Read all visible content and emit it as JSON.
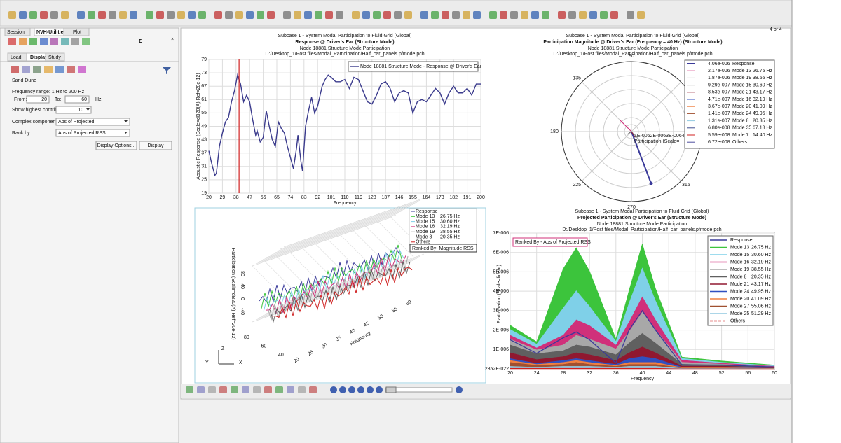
{
  "left_panel": {
    "tabs": [
      "Session",
      "NVH-Utilities",
      "Plot"
    ],
    "subtabs": [
      "Load",
      "Display",
      "Study"
    ],
    "section_title": "Sand Dune",
    "frequency_range": "Frequency range: 1 Hz to 200 Hz",
    "from_label": "From:",
    "from_value": "20",
    "to_label": "To:",
    "to_value": "60",
    "unit": "Hz",
    "highest_label": "Show highest contrib:",
    "highest_value": "10",
    "complex_label": "Complex component:",
    "complex_value": "Abs of Projected",
    "rank_label": "Rank by:",
    "rank_value": "Abs of Projected RSS",
    "options_button": "Display Options...",
    "display_button": "Display"
  },
  "page_counter": "4 of 4",
  "chart_data": [
    {
      "type": "line",
      "title_lines": [
        "Subcase 1 - System Modal Participation to Fluid Grid (Global)",
        "Response @ Driver's Ear (Structure Mode)",
        "Node 18881 Structure Mode Participation",
        "D:/Desktop_1/Post files/Modal_Participation/Half_car_panels.pfmode.pch"
      ],
      "xlabel": "Frequency",
      "ylabel": "Acoustic Response (Scale=dB20(A) Ref=20e-12)",
      "x": [
        20,
        22,
        24,
        25,
        27,
        29,
        31,
        33,
        35,
        37,
        39,
        41,
        43,
        45,
        47,
        49,
        51,
        52,
        54,
        56,
        58,
        60,
        62,
        64,
        66,
        68,
        70,
        72,
        74,
        76,
        78,
        79,
        81,
        82,
        84,
        86,
        88,
        90,
        92,
        95,
        97,
        99,
        101,
        104,
        107,
        110,
        113,
        116,
        119,
        122,
        125,
        128,
        131,
        134,
        137,
        140,
        143,
        146,
        149,
        152,
        155,
        158,
        161,
        164,
        167,
        170,
        173,
        176,
        179,
        182,
        185,
        188,
        191,
        194,
        197,
        200
      ],
      "series": [
        {
          "name": "Node 18881 Structure Mode - Response @ Driver's Ear",
          "color": "#3a3a8c",
          "values": [
            38,
            32,
            27,
            28,
            40,
            46,
            51,
            53,
            60,
            65,
            72,
            68,
            60,
            63,
            60,
            52,
            45,
            47,
            42,
            44,
            56,
            49,
            43,
            40,
            51,
            48,
            46,
            40,
            35,
            30,
            39,
            45,
            33,
            29,
            49,
            56,
            62,
            55,
            58,
            67,
            70,
            72,
            71,
            69,
            69,
            70,
            66,
            71,
            70,
            65,
            60,
            59,
            63,
            68,
            69,
            66,
            60,
            64,
            65,
            64,
            55,
            60,
            61,
            60,
            63,
            66,
            64,
            59,
            64,
            67,
            64,
            64,
            66,
            63,
            68,
            68
          ]
        }
      ],
      "xlim": [
        20,
        200
      ],
      "ylim": [
        19,
        79
      ],
      "xticks": [
        20,
        29,
        38,
        47,
        56,
        65,
        74,
        83,
        92,
        101,
        110,
        119,
        128,
        137,
        146,
        155,
        164,
        173,
        182,
        191,
        200
      ],
      "yticks": [
        19,
        25,
        31,
        37,
        43,
        49,
        55,
        61,
        67,
        73,
        79
      ],
      "grid": true,
      "cursor_x": 40,
      "cursor_color": "#d02020"
    },
    {
      "type": "polar",
      "title_lines": [
        "Subcase 1 - System Modal Participation to Fluid Grid (Global)",
        "Participation Magnitude @ Driver's Ear (Frequency = 40 Hz) (Structure Mode)",
        "Node 18881 Structure Mode Participation",
        "D:/Desktop_1/Post files/Modal_Participation/Half_car_panels.pfmode.pch"
      ],
      "angle_ticks": [
        90,
        135,
        180,
        225,
        270,
        315
      ],
      "radial_label": "1E-0062E-0063E-0064E",
      "axis_label": "Participation (Scale=",
      "legend": [
        {
          "value_label": "4.06e-006",
          "name": "Response",
          "color": "#3a3a9a"
        },
        {
          "value_label": "2.17e-006",
          "name": "Mode 13",
          "freq_label": "26.75 Hz",
          "color": "#d0307a"
        },
        {
          "value_label": "1.87e-006",
          "name": "Mode 19",
          "freq_label": "38.55 Hz",
          "color": "#a8a8a8"
        },
        {
          "value_label": "9.29e-007",
          "name": "Mode 15",
          "freq_label": "30.60 Hz",
          "color": "#606060"
        },
        {
          "value_label": "8.53e-007",
          "name": "Mode 21",
          "freq_label": "43.17 Hz",
          "color": "#901830"
        },
        {
          "value_label": "4.71e-007",
          "name": "Mode 16",
          "freq_label": "32.19 Hz",
          "color": "#3050c0"
        },
        {
          "value_label": "3.67e-007",
          "name": "Mode 20",
          "freq_label": "41.09 Hz",
          "color": "#f08040"
        },
        {
          "value_label": "1.41e-007",
          "name": "Mode 24",
          "freq_label": "49.95 Hz",
          "color": "#a05030"
        },
        {
          "value_label": "1.31e-007",
          "name": "Mode 8",
          "freq_label": "20.35 Hz",
          "color": "#90c8e0"
        },
        {
          "value_label": "6.80e-008",
          "name": "Mode 35",
          "freq_label": "67.18 Hz",
          "color": "#405090"
        },
        {
          "value_label": "5.59e-008",
          "name": "Mode 7",
          "freq_label": "14.40 Hz",
          "color": "#d02020"
        },
        {
          "value_label": "6.72e-008",
          "name": "Others",
          "color": "#5050a0"
        }
      ]
    },
    {
      "type": "surface3d",
      "ylabel": "Participation (Scale=dB20(A) Ref=20e-12)",
      "xlabel": "Frequency",
      "ranked_label": "Ranked By- Magnitude RSS",
      "legend": [
        {
          "name": "Response",
          "color": "#3a3a9a"
        },
        {
          "name": "Mode 13",
          "freq_label": "26.75 Hz",
          "color": "#3cc43c"
        },
        {
          "name": "Mode 15",
          "freq_label": "30.60 Hz",
          "color": "#7fd0e8"
        },
        {
          "name": "Mode 16",
          "freq_label": "32.19 Hz",
          "color": "#d0307a"
        },
        {
          "name": "Mode 19",
          "freq_label": "38.55 Hz",
          "color": "#a8a8a8"
        },
        {
          "name": "Mode 8",
          "freq_label": "20.35 Hz",
          "color": "#606060"
        },
        {
          "name": "Others",
          "color": "#d02020"
        }
      ],
      "zticks": [
        80,
        40,
        0,
        -40
      ],
      "xticks": [
        20,
        25,
        30,
        35,
        40,
        45,
        50,
        55,
        60
      ],
      "depth_ticks": [
        40,
        60,
        80
      ],
      "axis_letters": [
        "Z",
        "Y",
        "X"
      ]
    },
    {
      "type": "stacked_area",
      "title_lines": [
        "Subcase 1 - System Modal Participation to Fluid Grid (Global)",
        "Projected Participation @ Driver's Ear (Structure Mode)",
        "Node 18881 Structure Mode Participation",
        "D:/Desktop_1/Post files/Modal_Participation/Half_car_panels.pfmode.pch"
      ],
      "ranked_label": "Ranked By - Abs of Projected RSS",
      "xlabel": "Frequency",
      "ylabel": "Participation (Scale=linear)",
      "x": [
        20,
        24,
        28,
        30,
        32,
        36,
        38,
        40,
        42,
        46,
        52,
        60
      ],
      "series": [
        {
          "name": "Response",
          "kind": "line",
          "color": "#3a3a9a",
          "values": [
            1.5e-06,
            8e-07,
            1.6e-06,
            1.9e-06,
            1.5e-06,
            3e-07,
            2e-06,
            3e-06,
            2e-06,
            2e-07,
            2e-07,
            1e-07
          ]
        },
        {
          "name": "Mode 13",
          "freq_label": "26.75 Hz",
          "kind": "area",
          "color": "#3cc43c",
          "values": [
            2e-07,
            1e-07,
            2e-06,
            2.2e-06,
            1.8e-06,
            1e-07,
            6e-07,
            1.2e-06,
            6e-07,
            5e-08,
            5e-08,
            2e-08
          ]
        },
        {
          "name": "Mode 15",
          "freq_label": "30.60 Hz",
          "kind": "area",
          "color": "#7fd0e8",
          "values": [
            3e-07,
            2e-07,
            1.4e-06,
            1.5e-06,
            1e-06,
            2e-07,
            1e-06,
            1.5e-06,
            1e-06,
            1e-07,
            5e-08,
            3e-08
          ]
        },
        {
          "name": "Mode 16",
          "freq_label": "32.19 Hz",
          "kind": "area",
          "color": "#d0307a",
          "values": [
            2e-07,
            1e-07,
            5e-07,
            8e-07,
            7e-07,
            2e-07,
            5e-07,
            8e-07,
            5e-07,
            1e-07,
            5e-08,
            2e-08
          ]
        },
        {
          "name": "Mode 19",
          "freq_label": "38.55 Hz",
          "kind": "area",
          "color": "#a8a8a8",
          "values": [
            3e-07,
            2e-07,
            3e-07,
            5e-07,
            4e-07,
            3e-07,
            6e-07,
            1.1e-06,
            7e-07,
            1e-07,
            5e-08,
            3e-08
          ]
        },
        {
          "name": "Mode 8",
          "freq_label": "20.35 Hz",
          "kind": "area",
          "color": "#606060",
          "values": [
            4e-07,
            3e-07,
            3e-07,
            4e-07,
            4e-07,
            3e-07,
            5e-07,
            7e-07,
            5e-07,
            1e-07,
            5e-08,
            3e-08
          ]
        },
        {
          "name": "Mode 21",
          "freq_label": "43.17 Hz",
          "kind": "area",
          "color": "#901830",
          "values": [
            3e-07,
            2e-07,
            2e-07,
            3e-07,
            3e-07,
            2e-07,
            3e-07,
            5e-07,
            3e-07,
            5e-08,
            5e-08,
            2e-08
          ]
        },
        {
          "name": "Mode 24",
          "freq_label": "49.95 Hz",
          "kind": "area",
          "color": "#3050c0",
          "values": [
            1e-07,
            5e-08,
            1e-07,
            1e-07,
            1e-07,
            5e-08,
            2e-07,
            3e-07,
            2e-07,
            3e-08,
            3e-08,
            1e-08
          ]
        },
        {
          "name": "Mode 20",
          "freq_label": "41.09 Hz",
          "kind": "area",
          "color": "#f08040",
          "values": [
            1e-07,
            5e-08,
            1e-07,
            1e-07,
            1e-07,
            5e-08,
            1e-07,
            1e-07,
            1e-07,
            2e-08,
            2e-08,
            1e-08
          ]
        },
        {
          "name": "Mode 27",
          "freq_label": "55.06 Hz",
          "kind": "area",
          "color": "#a05030",
          "values": [
            2e-07,
            1e-07,
            1e-07,
            2e-07,
            1e-07,
            5e-08,
            1e-07,
            1e-07,
            1e-07,
            2e-08,
            2e-08,
            1e-08
          ]
        },
        {
          "name": "Mode 25",
          "freq_label": "51.29 Hz",
          "kind": "area",
          "color": "#90c8e0",
          "values": [
            1e-07,
            5e-08,
            1e-07,
            1e-07,
            1e-07,
            5e-08,
            1e-07,
            1e-07,
            1e-07,
            2e-08,
            2e-08,
            1e-08
          ]
        },
        {
          "name": "Others",
          "kind": "area",
          "dashed": true,
          "color": "#d02020",
          "values": [
            5e-08,
            5e-08,
            5e-08,
            5e-08,
            5e-08,
            5e-08,
            5e-08,
            5e-08,
            5e-08,
            2e-08,
            2e-08,
            1e-08
          ]
        }
      ],
      "xlim": [
        20,
        60
      ],
      "ylim": [
        0,
        7e-06
      ],
      "xticks": [
        20,
        24,
        28,
        32,
        36,
        40,
        44,
        48,
        52,
        56,
        60
      ],
      "yticks": [
        {
          "value": 2.352e-23,
          "label": ".2352E-022"
        },
        {
          "value": 1e-06,
          "label": "1E-006"
        },
        {
          "value": 2e-06,
          "label": "2E-006"
        },
        {
          "value": 3e-06,
          "label": "3E-006"
        },
        {
          "value": 4e-06,
          "label": "4E-006"
        },
        {
          "value": 5e-06,
          "label": "5E-006"
        },
        {
          "value": 6e-06,
          "label": "6E-006"
        },
        {
          "value": 7e-06,
          "label": "7E-006"
        }
      ],
      "grid": true
    }
  ]
}
